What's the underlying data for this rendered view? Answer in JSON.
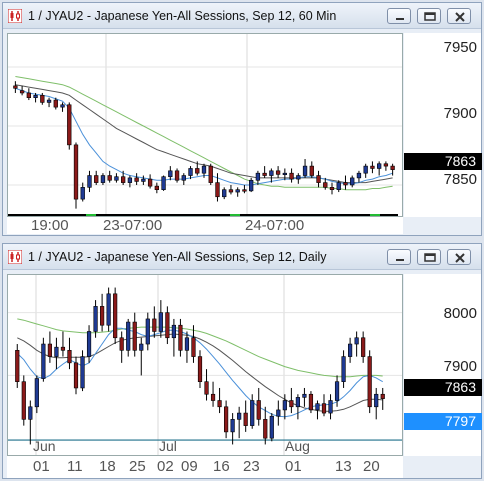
{
  "windows": [
    {
      "title": "1 / JYAU2 - Japanese Yen-All Sessions, Sep 12, 60 Min",
      "y_labels": [
        "7950",
        "7900",
        "7850"
      ],
      "price_tag": "7863",
      "price_tag_color": "#000000",
      "x_labels": [
        "19:00",
        "23-07:00",
        "24-07:00"
      ]
    },
    {
      "title": "1 / JYAU2 - Japanese Yen-All Sessions, Sep 12, Daily",
      "y_labels": [
        "8000",
        "7900"
      ],
      "price_tag": "7863",
      "price_tag_color": "#000000",
      "hline_tag": "7797",
      "hline_tag_color": "#1e90ff",
      "month_labels": [
        "Jun",
        "Jul",
        "Aug"
      ],
      "day_labels": [
        "01",
        "11",
        "18",
        "25",
        "02",
        "09",
        "16",
        "23",
        "01",
        "13",
        "20"
      ]
    }
  ],
  "chart_data": [
    {
      "type": "candlestick",
      "title": "1 / JYAU2 - Japanese Yen-All Sessions, Sep 12, 60 Min",
      "ylim": [
        7822,
        7978
      ],
      "y_ticks": [
        7950,
        7900,
        7850
      ],
      "x_ticks": [
        "19:00",
        "23-07:00",
        "24-07:00"
      ],
      "last_price": 7863,
      "up_color": "#1f3a93",
      "down_color": "#8b1a1a",
      "ohlc": [
        [
          7934,
          7938,
          7928,
          7932
        ],
        [
          7930,
          7934,
          7926,
          7928
        ],
        [
          7928,
          7932,
          7922,
          7924
        ],
        [
          7924,
          7928,
          7920,
          7926
        ],
        [
          7926,
          7928,
          7918,
          7920
        ],
        [
          7920,
          7924,
          7916,
          7922
        ],
        [
          7922,
          7924,
          7914,
          7916
        ],
        [
          7916,
          7920,
          7912,
          7918
        ],
        [
          7918,
          7920,
          7880,
          7884
        ],
        [
          7884,
          7886,
          7830,
          7838
        ],
        [
          7838,
          7852,
          7836,
          7848
        ],
        [
          7848,
          7862,
          7844,
          7858
        ],
        [
          7858,
          7862,
          7850,
          7852
        ],
        [
          7852,
          7860,
          7850,
          7858
        ],
        [
          7858,
          7862,
          7852,
          7854
        ],
        [
          7854,
          7860,
          7852,
          7857
        ],
        [
          7857,
          7862,
          7850,
          7852
        ],
        [
          7852,
          7858,
          7848,
          7856
        ],
        [
          7856,
          7860,
          7850,
          7853
        ],
        [
          7853,
          7858,
          7850,
          7855
        ],
        [
          7855,
          7859,
          7847,
          7849
        ],
        [
          7849,
          7852,
          7843,
          7846
        ],
        [
          7846,
          7858,
          7845,
          7857
        ],
        [
          7857,
          7866,
          7854,
          7862
        ],
        [
          7862,
          7864,
          7852,
          7854
        ],
        [
          7854,
          7860,
          7850,
          7858
        ],
        [
          7858,
          7866,
          7855,
          7864
        ],
        [
          7864,
          7870,
          7858,
          7860
        ],
        [
          7860,
          7868,
          7856,
          7866
        ],
        [
          7866,
          7868,
          7850,
          7852
        ],
        [
          7852,
          7860,
          7836,
          7840
        ],
        [
          7840,
          7848,
          7838,
          7846
        ],
        [
          7846,
          7850,
          7842,
          7844
        ],
        [
          7844,
          7848,
          7840,
          7846
        ],
        [
          7846,
          7850,
          7843,
          7845
        ],
        [
          7845,
          7856,
          7844,
          7854
        ],
        [
          7854,
          7862,
          7850,
          7860
        ],
        [
          7860,
          7866,
          7856,
          7858
        ],
        [
          7858,
          7864,
          7852,
          7862
        ],
        [
          7862,
          7866,
          7856,
          7859
        ],
        [
          7859,
          7864,
          7854,
          7860
        ],
        [
          7860,
          7864,
          7852,
          7855
        ],
        [
          7855,
          7860,
          7851,
          7858
        ],
        [
          7858,
          7872,
          7856,
          7866
        ],
        [
          7866,
          7870,
          7856,
          7858
        ],
        [
          7858,
          7862,
          7848,
          7852
        ],
        [
          7852,
          7856,
          7846,
          7848
        ],
        [
          7848,
          7852,
          7842,
          7846
        ],
        [
          7846,
          7854,
          7844,
          7852
        ],
        [
          7852,
          7858,
          7846,
          7850
        ],
        [
          7850,
          7858,
          7848,
          7856
        ],
        [
          7856,
          7862,
          7852,
          7860
        ],
        [
          7860,
          7868,
          7856,
          7866
        ],
        [
          7866,
          7870,
          7860,
          7864
        ],
        [
          7864,
          7870,
          7858,
          7868
        ],
        [
          7868,
          7870,
          7862,
          7866
        ],
        [
          7866,
          7868,
          7858,
          7863
        ]
      ],
      "ma_fast": [
        7932,
        7930,
        7928,
        7927,
        7926,
        7925,
        7923,
        7921,
        7915,
        7904,
        7893,
        7884,
        7877,
        7870,
        7866,
        7863,
        7860,
        7858,
        7857,
        7856,
        7855,
        7854,
        7854,
        7855,
        7855,
        7855,
        7856,
        7857,
        7858,
        7858,
        7856,
        7854,
        7852,
        7851,
        7850,
        7850,
        7851,
        7852,
        7853,
        7854,
        7855,
        7855,
        7856,
        7857,
        7857,
        7856,
        7855,
        7853,
        7852,
        7851,
        7851,
        7852,
        7854,
        7855,
        7857,
        7858,
        7860
      ],
      "ma_slow": [
        7935,
        7934,
        7933,
        7932,
        7931,
        7930,
        7929,
        7928,
        7926,
        7922,
        7918,
        7914,
        7910,
        7906,
        7902,
        7898,
        7895,
        7892,
        7889,
        7886,
        7883,
        7880,
        7878,
        7876,
        7874,
        7872,
        7870,
        7868,
        7867,
        7866,
        7864,
        7862,
        7860,
        7859,
        7858,
        7857,
        7856,
        7856,
        7856,
        7856,
        7856,
        7856,
        7856,
        7856,
        7856,
        7856,
        7855,
        7854,
        7853,
        7852,
        7852,
        7852,
        7852,
        7853,
        7854,
        7855,
        7856
      ],
      "ma_long": [
        7942,
        7941,
        7940,
        7939,
        7938,
        7937,
        7936,
        7935,
        7933,
        7930,
        7927,
        7924,
        7921,
        7918,
        7915,
        7912,
        7909,
        7906,
        7903,
        7900,
        7897,
        7894,
        7891,
        7888,
        7885,
        7882,
        7879,
        7876,
        7873,
        7870,
        7867,
        7864,
        7861,
        7858,
        7855,
        7853,
        7851,
        7850,
        7849,
        7849,
        7848,
        7848,
        7848,
        7848,
        7848,
        7848,
        7848,
        7847,
        7847,
        7846,
        7846,
        7846,
        7846,
        7847,
        7847,
        7848,
        7849
      ],
      "session_bar": [
        "#000000",
        "#22bb33"
      ]
    },
    {
      "type": "candlestick",
      "title": "1 / JYAU2 - Japanese Yen-All Sessions, Sep 12, Daily",
      "ylim": [
        7770,
        8060
      ],
      "y_ticks": [
        8000,
        7900
      ],
      "x_ticks": [
        "01",
        "11",
        "18",
        "25",
        "02",
        "09",
        "16",
        "23",
        "01",
        "13",
        "20"
      ],
      "months": [
        "Jun",
        "Jul",
        "Aug"
      ],
      "last_price": 7863,
      "horizontal_line": 7797,
      "up_color": "#1f3a93",
      "down_color": "#8b1a1a",
      "ohlc": [
        [
          7940,
          7950,
          7880,
          7890
        ],
        [
          7890,
          7900,
          7820,
          7830
        ],
        [
          7830,
          7860,
          7790,
          7850
        ],
        [
          7850,
          7900,
          7840,
          7895
        ],
        [
          7895,
          7960,
          7890,
          7950
        ],
        [
          7950,
          7970,
          7920,
          7930
        ],
        [
          7930,
          7960,
          7910,
          7945
        ],
        [
          7945,
          7970,
          7930,
          7940
        ],
        [
          7940,
          7960,
          7910,
          7920
        ],
        [
          7920,
          7930,
          7870,
          7880
        ],
        [
          7880,
          7940,
          7875,
          7930
        ],
        [
          7930,
          7980,
          7920,
          7970
        ],
        [
          7970,
          8020,
          7960,
          8010
        ],
        [
          8010,
          8030,
          7970,
          7980
        ],
        [
          7980,
          8040,
          7970,
          8030
        ],
        [
          8030,
          8040,
          7950,
          7960
        ],
        [
          7960,
          7970,
          7920,
          7940
        ],
        [
          7940,
          7990,
          7930,
          7985
        ],
        [
          7985,
          8000,
          7930,
          7940
        ],
        [
          7940,
          7960,
          7900,
          7950
        ],
        [
          7950,
          8000,
          7940,
          7990
        ],
        [
          7990,
          8010,
          7960,
          7970
        ],
        [
          7970,
          8020,
          7960,
          8000
        ],
        [
          8000,
          8010,
          7950,
          7960
        ],
        [
          7960,
          7990,
          7930,
          7980
        ],
        [
          7980,
          7990,
          7930,
          7940
        ],
        [
          7940,
          7970,
          7920,
          7960
        ],
        [
          7960,
          7980,
          7920,
          7930
        ],
        [
          7930,
          7940,
          7880,
          7890
        ],
        [
          7890,
          7910,
          7860,
          7870
        ],
        [
          7870,
          7890,
          7850,
          7860
        ],
        [
          7860,
          7880,
          7840,
          7850
        ],
        [
          7850,
          7860,
          7800,
          7810
        ],
        [
          7810,
          7840,
          7790,
          7830
        ],
        [
          7830,
          7850,
          7800,
          7840
        ],
        [
          7840,
          7860,
          7810,
          7820
        ],
        [
          7820,
          7870,
          7815,
          7860
        ],
        [
          7860,
          7880,
          7820,
          7830
        ],
        [
          7830,
          7850,
          7790,
          7800
        ],
        [
          7800,
          7840,
          7795,
          7835
        ],
        [
          7835,
          7860,
          7820,
          7845
        ],
        [
          7845,
          7870,
          7830,
          7860
        ],
        [
          7860,
          7880,
          7840,
          7850
        ],
        [
          7850,
          7870,
          7830,
          7865
        ],
        [
          7865,
          7880,
          7850,
          7870
        ],
        [
          7870,
          7875,
          7840,
          7845
        ],
        [
          7845,
          7860,
          7830,
          7855
        ],
        [
          7855,
          7870,
          7835,
          7840
        ],
        [
          7840,
          7870,
          7830,
          7860
        ],
        [
          7860,
          7900,
          7850,
          7890
        ],
        [
          7890,
          7940,
          7880,
          7930
        ],
        [
          7930,
          7960,
          7920,
          7950
        ],
        [
          7950,
          7970,
          7930,
          7960
        ],
        [
          7960,
          7970,
          7920,
          7930
        ],
        [
          7930,
          7940,
          7840,
          7850
        ],
        [
          7850,
          7880,
          7830,
          7870
        ],
        [
          7870,
          7880,
          7845,
          7863
        ]
      ],
      "ma_fast": [
        7935,
        7925,
        7910,
        7898,
        7895,
        7900,
        7910,
        7918,
        7925,
        7920,
        7915,
        7920,
        7935,
        7950,
        7965,
        7975,
        7975,
        7972,
        7970,
        7965,
        7962,
        7965,
        7968,
        7972,
        7972,
        7970,
        7966,
        7960,
        7952,
        7942,
        7930,
        7918,
        7905,
        7892,
        7880,
        7868,
        7858,
        7850,
        7844,
        7838,
        7835,
        7834,
        7836,
        7840,
        7845,
        7850,
        7852,
        7853,
        7854,
        7858,
        7866,
        7876,
        7888,
        7898,
        7900,
        7896,
        7890
      ],
      "ma_slow": [
        7960,
        7955,
        7948,
        7940,
        7934,
        7930,
        7928,
        7928,
        7929,
        7929,
        7929,
        7930,
        7934,
        7940,
        7946,
        7952,
        7956,
        7958,
        7960,
        7961,
        7962,
        7963,
        7964,
        7965,
        7966,
        7965,
        7964,
        7962,
        7958,
        7953,
        7947,
        7940,
        7932,
        7924,
        7915,
        7906,
        7898,
        7890,
        7882,
        7875,
        7868,
        7862,
        7856,
        7852,
        7848,
        7846,
        7844,
        7843,
        7843,
        7844,
        7846,
        7850,
        7855,
        7860,
        7862,
        7862,
        7861
      ],
      "ma_long": [
        7990,
        7988,
        7985,
        7982,
        7979,
        7976,
        7973,
        7971,
        7970,
        7969,
        7968,
        7968,
        7968,
        7969,
        7970,
        7972,
        7974,
        7975,
        7976,
        7977,
        7977,
        7977,
        7977,
        7977,
        7976,
        7975,
        7974,
        7972,
        7970,
        7967,
        7963,
        7959,
        7955,
        7950,
        7945,
        7940,
        7935,
        7930,
        7926,
        7922,
        7918,
        7914,
        7911,
        7908,
        7906,
        7904,
        7902,
        7900,
        7899,
        7898,
        7898,
        7898,
        7899,
        7900,
        7900,
        7900,
        7899
      ]
    }
  ]
}
